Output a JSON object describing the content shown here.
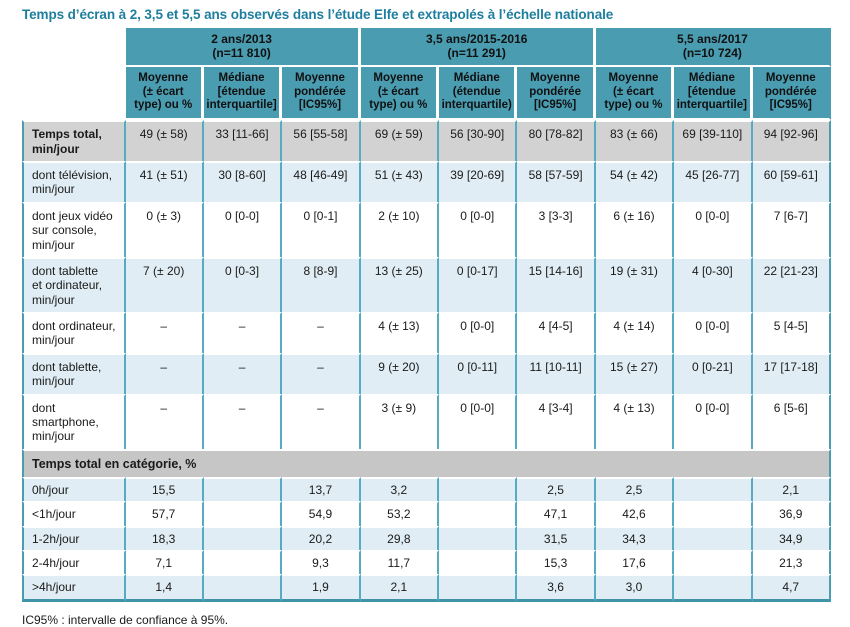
{
  "title": "Temps d’écran à 2, 3,5 et 5,5 ans observés dans l’étude Elfe et extrapolés à l’échelle nationale",
  "footnote": "IC95% : intervalle de confiance à 95%.",
  "colors": {
    "title_text": "#1E7E9E",
    "header_teal": "#4A9CB1",
    "row_light_blue": "#E0EDF4",
    "row_gray": "#D2D2D2",
    "section_gray": "#C6C6C6",
    "grid_line_teal": "#55ACC2",
    "outer_border_teal": "#3E93A9"
  },
  "table": {
    "groups": [
      "2 ans/2013\n(n=11 810)",
      "3,5 ans/2015-2016\n(n=11 291)",
      "5,5 ans/2017\n(n=10 724)"
    ],
    "subheaders": [
      "Moyenne\n(± écart\ntype) ou %",
      "Médiane\n[étendue\ninterquartile]",
      "Moyenne\npondérée\n[IC95%]",
      "Moyenne\n(± écart\ntype) ou %",
      "Médiane\n(étendue\ninterquartile)",
      "Moyenne\npondérée\n[IC95%]",
      "Moyenne\n(± écart\ntype) ou %",
      "Médiane\n[étendue\ninterquartile]",
      "Moyenne\npondérée\n[IC95%]"
    ],
    "rows": [
      {
        "label": "Temps total,\nmin/jour",
        "cells": [
          "49 (± 58)",
          "33 [11-66]",
          "56 [55-58]",
          "69 (± 59)",
          "56 [30-90]",
          "80 [78-82]",
          "83 (± 66)",
          "69 [39-110]",
          "94 [92-96]"
        ]
      },
      {
        "label": "dont télévision,\nmin/jour",
        "cells": [
          "41 (± 51)",
          "30 [8-60]",
          "48 [46-49]",
          "51 (± 43)",
          "39 [20-69]",
          "58 [57-59]",
          "54 (± 42)",
          "45 [26-77]",
          "60 [59-61]"
        ]
      },
      {
        "label": "dont jeux vidéo\nsur console,\nmin/jour",
        "cells": [
          "0 (± 3)",
          "0 [0-0]",
          "0 [0-1]",
          "2 (± 10)",
          "0 [0-0]",
          "3 [3-3]",
          "6 (± 16)",
          "0 [0-0]",
          "7 [6-7]"
        ]
      },
      {
        "label": "dont tablette\net ordinateur,\nmin/jour",
        "cells": [
          "7 (± 20)",
          "0 [0-3]",
          "8 [8-9]",
          "13 (± 25)",
          "0 [0-17]",
          "15 [14-16]",
          "19 (± 31)",
          "4 [0-30]",
          "22 [21-23]"
        ]
      },
      {
        "label": "dont ordinateur,\nmin/jour",
        "cells": [
          "–",
          "–",
          "–",
          "4 (± 13)",
          "0 [0-0]",
          "4 [4-5]",
          "4 (± 14)",
          "0 [0-0]",
          "5 [4-5]"
        ]
      },
      {
        "label": "dont tablette,\nmin/jour",
        "cells": [
          "–",
          "–",
          "–",
          "9 (± 20)",
          "0 [0-11]",
          "11 [10-11]",
          "15 (± 27)",
          "0 [0-21]",
          "17 [17-18]"
        ]
      },
      {
        "label": "dont smartphone,\nmin/jour",
        "cells": [
          "–",
          "–",
          "–",
          "3 (± 9)",
          "0 [0-0]",
          "4 [3-4]",
          "4 (± 13)",
          "0 [0-0]",
          "6 [5-6]"
        ]
      },
      {
        "label": "Temps total en catégorie, %",
        "cells": []
      },
      {
        "label": "0h/jour",
        "cells": [
          "15,5",
          "",
          "13,7",
          "3,2",
          "",
          "2,5",
          "2,5",
          "",
          "2,1"
        ]
      },
      {
        "label": "<1h/jour",
        "cells": [
          "57,7",
          "",
          "54,9",
          "53,2",
          "",
          "47,1",
          "42,6",
          "",
          "36,9"
        ]
      },
      {
        "label": "1-2h/jour",
        "cells": [
          "18,3",
          "",
          "20,2",
          "29,8",
          "",
          "31,5",
          "34,3",
          "",
          "34,9"
        ]
      },
      {
        "label": "2-4h/jour",
        "cells": [
          "7,1",
          "",
          "9,3",
          "11,7",
          "",
          "15,3",
          "17,6",
          "",
          "21,3"
        ]
      },
      {
        "label": ">4h/jour",
        "cells": [
          "1,4",
          "",
          "1,9",
          "2,1",
          "",
          "3,6",
          "3,0",
          "",
          "4,7"
        ]
      }
    ]
  }
}
